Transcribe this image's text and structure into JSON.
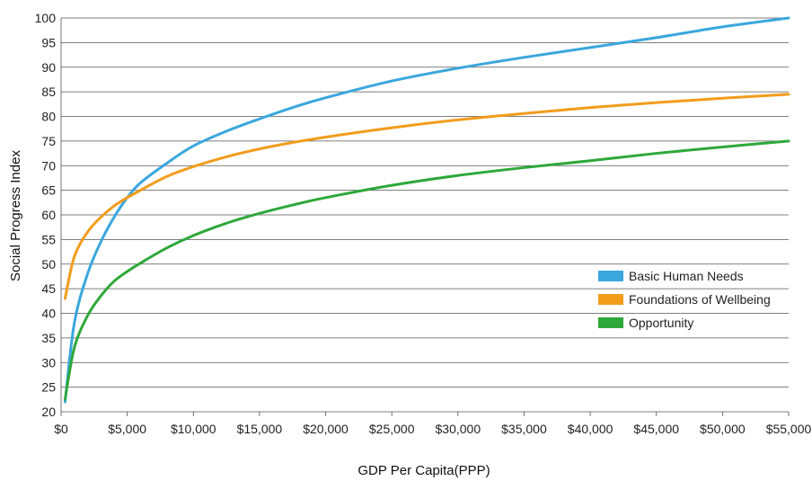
{
  "chart_data": {
    "type": "line",
    "title": "",
    "xlabel": "GDP Per Capita(PPP)",
    "ylabel": "Social Progress Index",
    "xlim": [
      0,
      55000
    ],
    "ylim": [
      20,
      100
    ],
    "x_ticks": [
      0,
      5000,
      10000,
      15000,
      20000,
      25000,
      30000,
      35000,
      40000,
      45000,
      50000,
      55000
    ],
    "x_tick_labels": [
      "$0",
      "$5,000",
      "$10,000",
      "$15,000",
      "$20,000",
      "$25,000",
      "$30,000",
      "$35,000",
      "$40,000",
      "$45,000",
      "$50,000",
      "$55,000"
    ],
    "y_ticks": [
      20,
      25,
      30,
      35,
      40,
      45,
      50,
      55,
      60,
      65,
      70,
      75,
      80,
      85,
      90,
      95,
      100
    ],
    "y_tick_labels": [
      "20",
      "25",
      "30",
      "35",
      "40",
      "45",
      "50",
      "55",
      "60",
      "65",
      "70",
      "75",
      "80",
      "85",
      "90",
      "95",
      "100"
    ],
    "grid": "horizontal",
    "legend_position": "right",
    "x": [
      300,
      1000,
      2000,
      3000,
      4000,
      5000,
      6000,
      8000,
      10000,
      12500,
      15000,
      17500,
      20000,
      25000,
      30000,
      35000,
      40000,
      45000,
      50000,
      55000
    ],
    "series": [
      {
        "name": "Basic Human Needs",
        "color": "#3aa7dd",
        "values": [
          22,
          38,
          48,
          54.5,
          59.5,
          63.5,
          66.5,
          70.5,
          74,
          77,
          79.5,
          81.8,
          83.8,
          87.2,
          89.8,
          92,
          94,
          96,
          98.2,
          100
        ]
      },
      {
        "name": "Foundations of Wellbeing",
        "color": "#f29c1c",
        "values": [
          43,
          51.5,
          56.5,
          59.5,
          61.8,
          63.5,
          65,
          67.8,
          69.8,
          71.8,
          73.4,
          74.7,
          75.8,
          77.7,
          79.3,
          80.6,
          81.8,
          82.8,
          83.7,
          84.5
        ]
      },
      {
        "name": "Opportunity",
        "color": "#2ea83a",
        "values": [
          22.5,
          33,
          39.5,
          43.5,
          46.5,
          48.5,
          50.2,
          53.3,
          55.8,
          58.3,
          60.3,
          62,
          63.5,
          66,
          68,
          69.6,
          71,
          72.5,
          73.8,
          75
        ]
      }
    ]
  }
}
